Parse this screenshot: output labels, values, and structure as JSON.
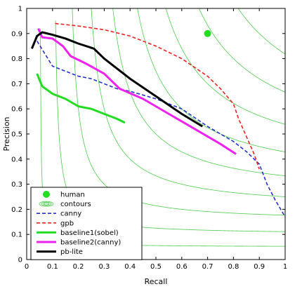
{
  "chart_data": {
    "type": "line",
    "title": "",
    "xlabel": "Recall",
    "ylabel": "Precision",
    "xlim": [
      0,
      1
    ],
    "ylim": [
      0,
      1
    ],
    "xticks": [
      "0",
      "0.1",
      "0.2",
      "0.3",
      "0.4",
      "0.5",
      "0.6",
      "0.7",
      "0.8",
      "0.9",
      "1"
    ],
    "yticks": [
      "0",
      "0.1",
      "0.2",
      "0.3",
      "0.4",
      "0.5",
      "0.6",
      "0.7",
      "0.8",
      "0.9",
      "1"
    ],
    "grid": false,
    "legend_position": "bottom-left",
    "contour_color": "#4ccc4c",
    "contour_levels": [
      0.1,
      0.2,
      0.3,
      0.4,
      0.5,
      0.6,
      0.7,
      0.8,
      0.9
    ],
    "human": {
      "name": "human",
      "x": 0.7,
      "y": 0.9,
      "color": "#22dd22"
    },
    "contours_legend": {
      "name": "contours",
      "color": "#4ccc4c"
    },
    "series": [
      {
        "name": "canny",
        "color": "#2233cc",
        "style": "dashed",
        "width": 1.6,
        "x": [
          0.04,
          0.07,
          0.1,
          0.15,
          0.2,
          0.25,
          0.3,
          0.35,
          0.4,
          0.5,
          0.6,
          0.7,
          0.8,
          0.85,
          0.9,
          0.93,
          0.96,
          1.0
        ],
        "y": [
          0.87,
          0.82,
          0.77,
          0.75,
          0.73,
          0.72,
          0.7,
          0.68,
          0.67,
          0.64,
          0.6,
          0.53,
          0.47,
          0.43,
          0.38,
          0.3,
          0.24,
          0.17
        ]
      },
      {
        "name": "gpb",
        "color": "#ee2222",
        "style": "dashed",
        "width": 1.6,
        "x": [
          0.11,
          0.2,
          0.3,
          0.4,
          0.5,
          0.6,
          0.7,
          0.75,
          0.8,
          0.82,
          0.85,
          0.88,
          0.9
        ],
        "y": [
          0.94,
          0.93,
          0.915,
          0.89,
          0.85,
          0.8,
          0.73,
          0.68,
          0.62,
          0.56,
          0.49,
          0.42,
          0.36
        ]
      },
      {
        "name": "baseline1(sobel)",
        "color": "#22dd22",
        "style": "solid",
        "width": 3,
        "x": [
          0.04,
          0.06,
          0.1,
          0.15,
          0.2,
          0.25,
          0.3,
          0.35,
          0.38
        ],
        "y": [
          0.74,
          0.69,
          0.66,
          0.64,
          0.61,
          0.6,
          0.58,
          0.56,
          0.545
        ]
      },
      {
        "name": "baseline2(canny)",
        "color": "#ee22ee",
        "style": "solid",
        "width": 3,
        "x": [
          0.045,
          0.06,
          0.1,
          0.14,
          0.17,
          0.23,
          0.3,
          0.36,
          0.45,
          0.55,
          0.65,
          0.75,
          0.81
        ],
        "y": [
          0.92,
          0.885,
          0.88,
          0.85,
          0.81,
          0.78,
          0.74,
          0.68,
          0.64,
          0.58,
          0.52,
          0.46,
          0.42
        ]
      },
      {
        "name": "pb-lite",
        "color": "#000000",
        "style": "solid",
        "width": 3,
        "x": [
          0.02,
          0.04,
          0.06,
          0.1,
          0.15,
          0.2,
          0.26,
          0.3,
          0.4,
          0.5,
          0.6,
          0.68
        ],
        "y": [
          0.84,
          0.89,
          0.905,
          0.895,
          0.88,
          0.86,
          0.84,
          0.8,
          0.72,
          0.65,
          0.58,
          0.53
        ]
      }
    ]
  }
}
